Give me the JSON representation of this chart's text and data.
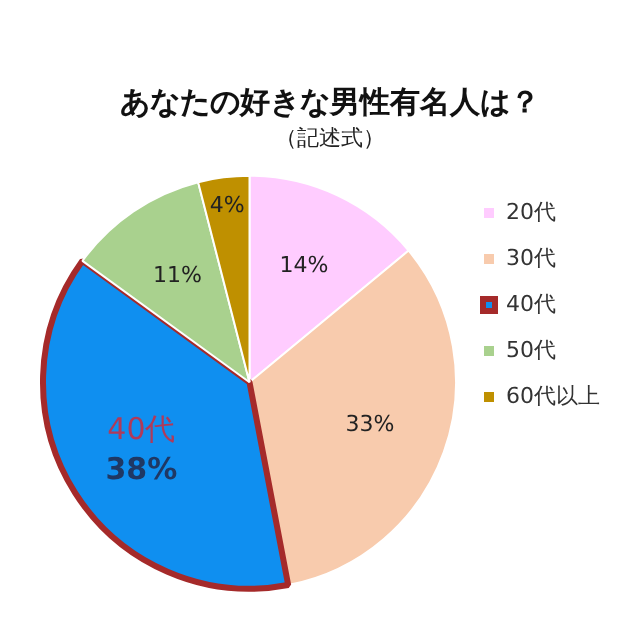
{
  "chart_data": {
    "type": "pie",
    "title": "あなたの好きな男性有名人は？",
    "subtitle": "（記述式）",
    "categories": [
      "20代",
      "30代",
      "40代",
      "50代",
      "60代以上"
    ],
    "values": [
      14,
      33,
      38,
      11,
      4
    ],
    "colors": [
      "#ffccff",
      "#f8cbad",
      "#0f8ff0",
      "#a9d18e",
      "#bf9000"
    ],
    "value_labels": [
      "14%",
      "33%",
      "38%",
      "11%",
      "4%"
    ],
    "annotations": [
      {
        "text": "40代",
        "x": "40代"
      }
    ],
    "legend": "right"
  }
}
